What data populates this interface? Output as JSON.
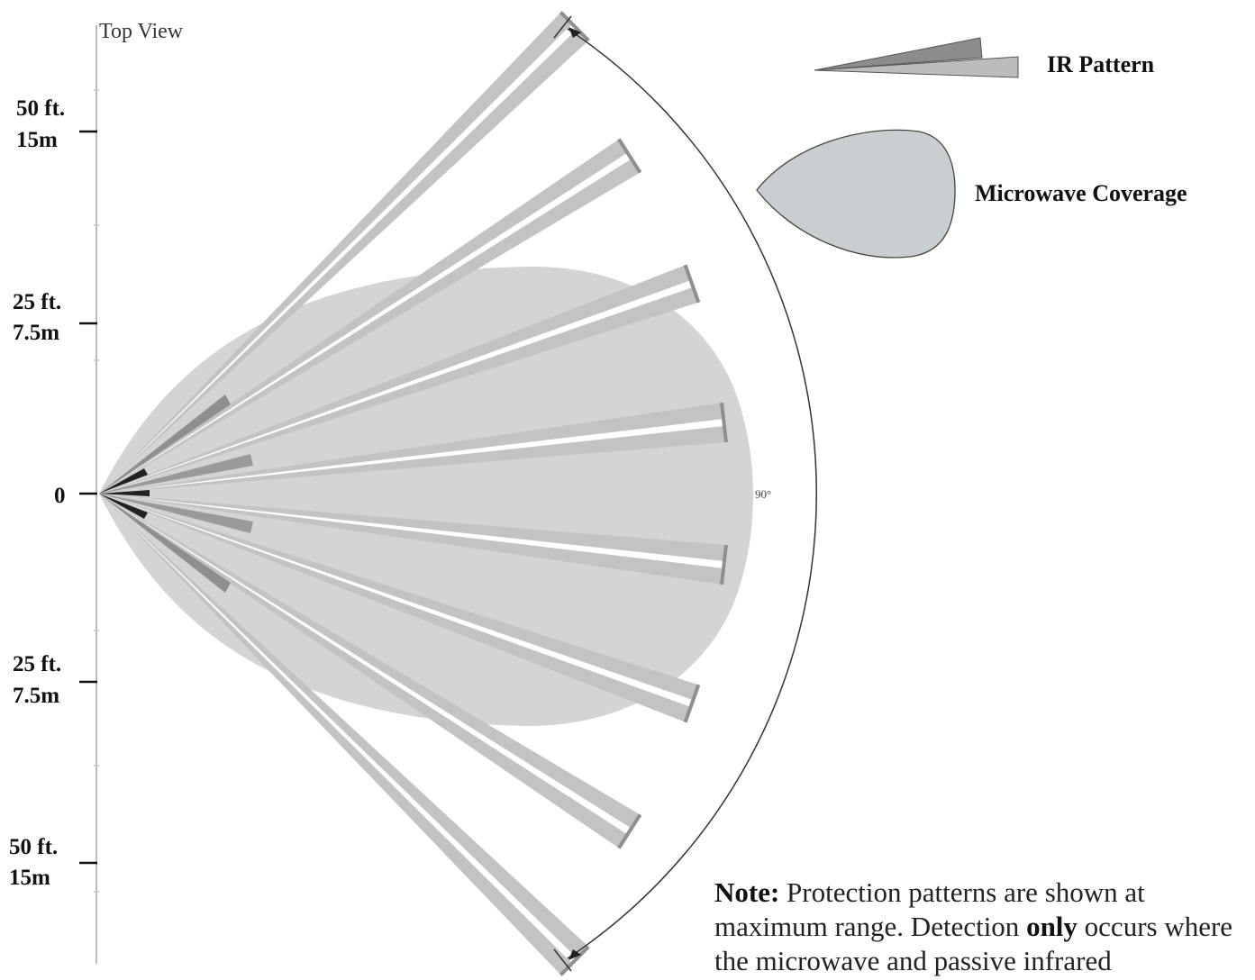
{
  "view_label": "Top View",
  "scale": [
    {
      "ft": "50 ft.",
      "m": "15m"
    },
    {
      "ft": "25 ft.",
      "m": "7.5m"
    },
    {
      "ft": "0",
      "m": ""
    },
    {
      "ft": "25 ft.",
      "m": "7.5m"
    },
    {
      "ft": "50 ft.",
      "m": "15m"
    }
  ],
  "angle_label": "90°",
  "legend": {
    "ir_label": "IR Pattern",
    "microwave_label": "Microwave Coverage"
  },
  "note": {
    "lead": "Note:",
    "text1": " Protection patterns are shown at maximum range. Detection ",
    "emphasis": "only",
    "text2": " occurs where the microwave and passive infrared"
  },
  "colors": {
    "ir_beam": "#c3c3c3",
    "ir_beam_dark": "#8f8f8f",
    "microwave": "#d4d4d4",
    "microwave_legend": "#c9cfd1",
    "axis": "#bdbdbd"
  }
}
